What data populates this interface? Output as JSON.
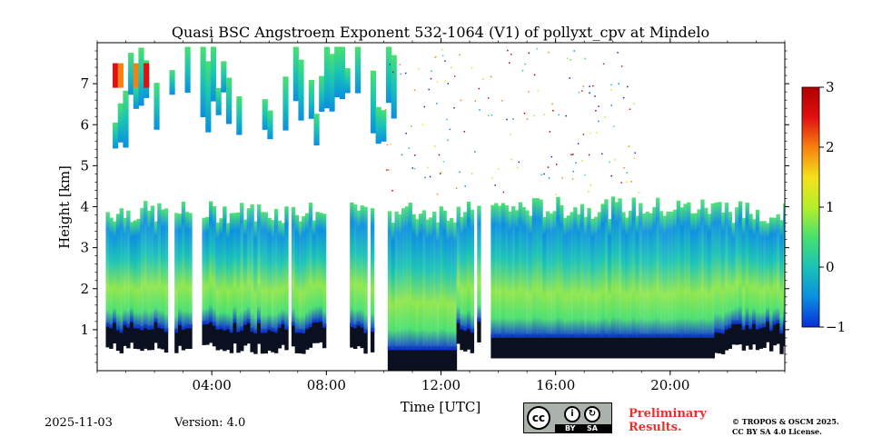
{
  "chart_data": {
    "type": "heatmap",
    "title": "Quasi BSC Angstroem Exponent 532-1064 (V1) of pollyxt_cpv at Mindelo",
    "xlabel": "Time [UTC]",
    "ylabel": "Height [km]",
    "xlim_hours": [
      0,
      24
    ],
    "ylim_km": [
      0,
      8
    ],
    "x_ticks": [
      {
        "hour": 4,
        "label": "04:00"
      },
      {
        "hour": 8,
        "label": "08:00"
      },
      {
        "hour": 12,
        "label": "12:00"
      },
      {
        "hour": 16,
        "label": "16:00"
      },
      {
        "hour": 20,
        "label": "20:00"
      }
    ],
    "y_ticks": [
      {
        "value": 1,
        "label": "1"
      },
      {
        "value": 2,
        "label": "2"
      },
      {
        "value": 3,
        "label": "3"
      },
      {
        "value": 4,
        "label": "4"
      },
      {
        "value": 5,
        "label": "5"
      },
      {
        "value": 6,
        "label": "6"
      },
      {
        "value": 7,
        "label": "7"
      }
    ],
    "colorbar": {
      "range": [
        -1,
        3
      ],
      "ticks": [
        {
          "value": -1,
          "label": "−1"
        },
        {
          "value": 0,
          "label": "0"
        },
        {
          "value": 1,
          "label": "1"
        },
        {
          "value": 2,
          "label": "2"
        },
        {
          "value": 3,
          "label": "3"
        }
      ],
      "colormap": [
        "#0a2dd8",
        "#0a8fe0",
        "#19c3b5",
        "#49e070",
        "#b5ef2a",
        "#f4e11a",
        "#f88010",
        "#e01010",
        "#b00000"
      ]
    },
    "layers": [
      {
        "name": "lower-aerosol",
        "t_start": 0.3,
        "t_end": 24,
        "h_bottom": 0.1,
        "h_top": 4.1,
        "typical_value": 0.5
      },
      {
        "name": "upper-cloud",
        "t_start": 0.0,
        "t_end": 12.0,
        "h_bottom": 5.5,
        "h_top": 7.9,
        "typical_value": 0.3
      }
    ]
  },
  "footer": {
    "date": "2025-11-03",
    "version": "Version: 4.0",
    "license_badge": {
      "cc": "cc",
      "by": "BY",
      "sa": "SA"
    },
    "preliminary_line1": "Preliminary",
    "preliminary_line2": "Results.",
    "copyright_line1": "© TROPOS & OSCM 2025.",
    "copyright_line2": "CC BY SA 4.0 License."
  }
}
